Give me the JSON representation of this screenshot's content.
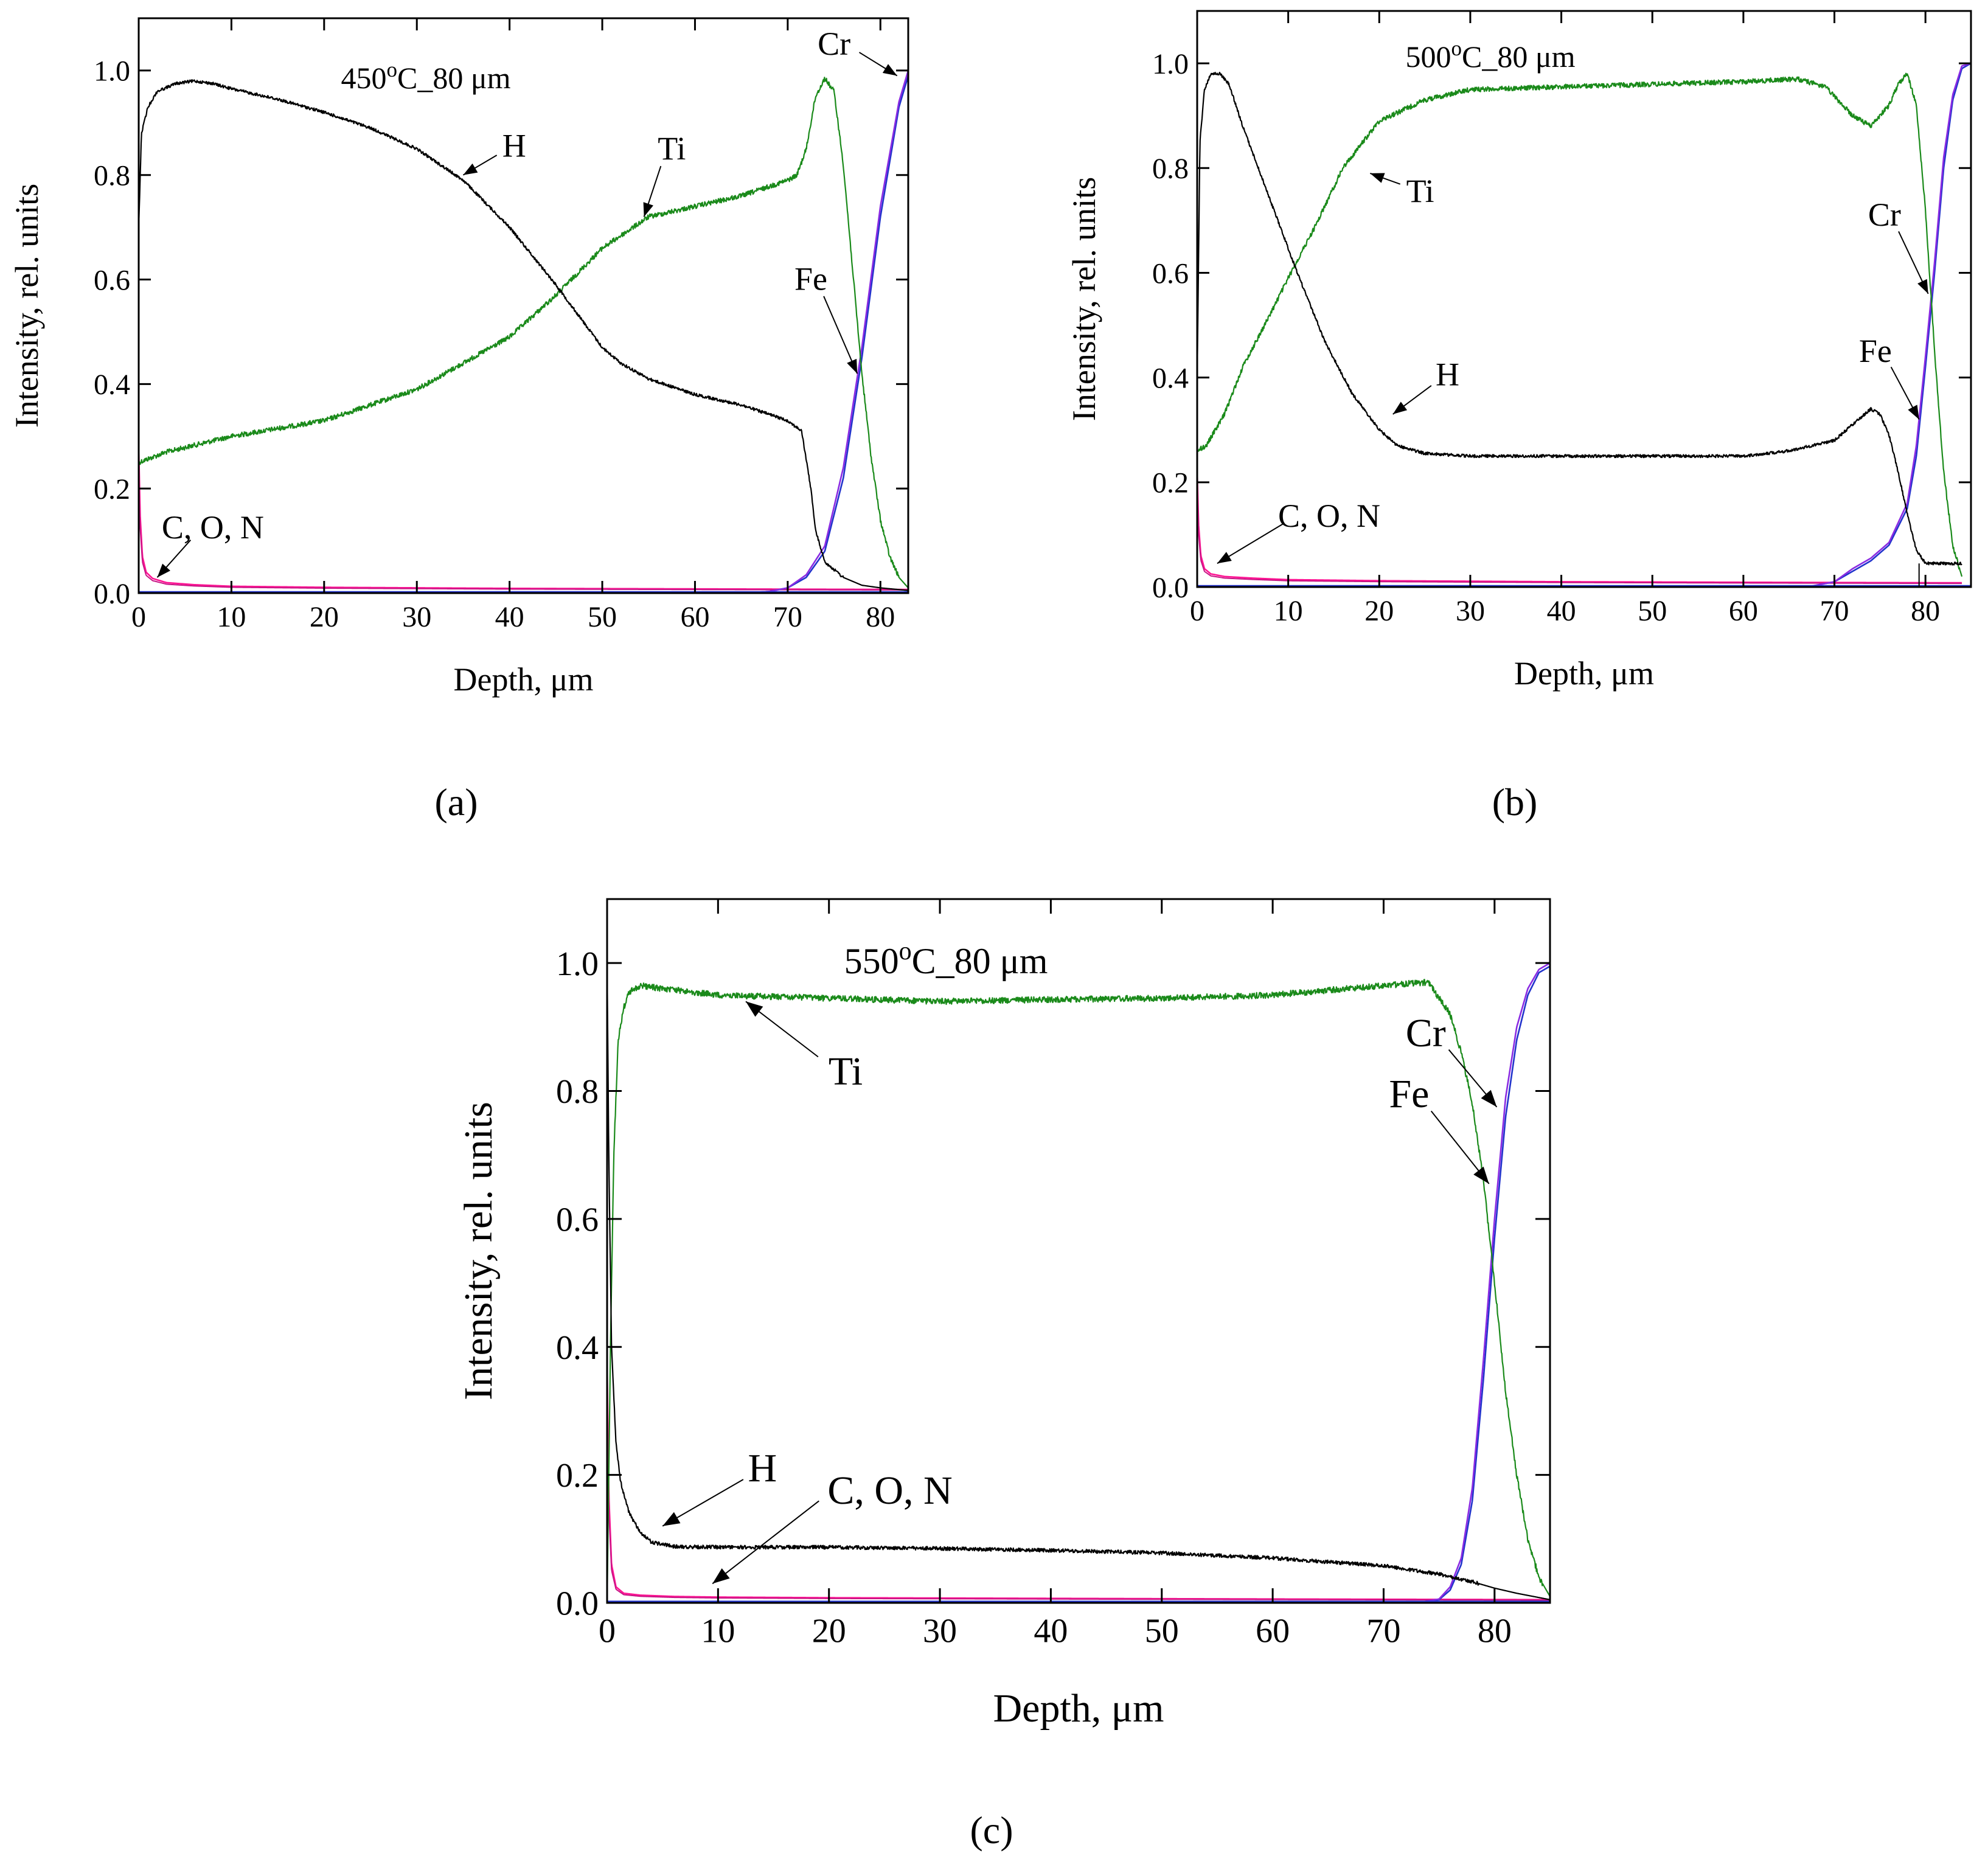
{
  "figure": {
    "panels": [
      "(a)",
      "(b)",
      "(c)"
    ]
  },
  "colors": {
    "H": "#000000",
    "Ti": "#1a8a1a",
    "Fe": "#2233cc",
    "Cr": "#8a2be2",
    "C_O_N": "#ff1493",
    "C_O_N_dark": "#c71585"
  },
  "chart_data": [
    {
      "type": "line",
      "panel": "(a)",
      "title": "450°C_80 μm",
      "title_main": "450",
      "title_sup": "o",
      "title_rest": "C_80 μm",
      "xlabel": "Depth, μm",
      "ylabel": "Intensity, rel. units",
      "xlim": [
        0,
        83
      ],
      "ylim": [
        0,
        1.1
      ],
      "xticks": [
        0,
        10,
        20,
        30,
        40,
        50,
        60,
        70,
        80
      ],
      "yticks": [
        0.0,
        0.2,
        0.4,
        0.6,
        0.8,
        1.0
      ],
      "ytick_labels": [
        "0.0",
        "0.2",
        "0.4",
        "0.6",
        "0.8",
        "1.0"
      ],
      "series": [
        {
          "name": "H",
          "x": [
            0,
            0.3,
            1,
            2,
            4,
            6,
            8,
            10,
            15,
            20,
            25,
            30,
            35,
            40,
            45,
            50,
            52,
            55,
            60,
            65,
            70,
            71.5,
            72.5,
            73,
            74,
            76,
            78,
            80,
            83
          ],
          "y": [
            0.7,
            0.88,
            0.93,
            0.96,
            0.975,
            0.98,
            0.975,
            0.965,
            0.945,
            0.92,
            0.89,
            0.85,
            0.79,
            0.7,
            0.59,
            0.47,
            0.44,
            0.41,
            0.38,
            0.36,
            0.33,
            0.31,
            0.2,
            0.12,
            0.06,
            0.03,
            0.015,
            0.01,
            0.005
          ]
        },
        {
          "name": "Ti",
          "x": [
            0,
            3,
            10,
            20,
            30,
            40,
            45,
            50,
            55,
            60,
            65,
            70,
            71,
            72,
            73,
            74,
            75,
            76,
            77,
            78,
            79,
            80,
            81,
            82,
            83
          ],
          "y": [
            0.25,
            0.27,
            0.3,
            0.33,
            0.39,
            0.49,
            0.57,
            0.66,
            0.72,
            0.74,
            0.76,
            0.79,
            0.8,
            0.85,
            0.95,
            0.985,
            0.96,
            0.82,
            0.62,
            0.42,
            0.26,
            0.14,
            0.07,
            0.03,
            0.01
          ]
        },
        {
          "name": "Fe",
          "x": [
            0,
            65,
            68,
            70,
            72,
            74,
            76,
            78,
            80,
            82,
            83
          ],
          "y": [
            0.0,
            0.0,
            0.003,
            0.01,
            0.03,
            0.08,
            0.22,
            0.45,
            0.72,
            0.93,
            0.99
          ]
        },
        {
          "name": "Cr",
          "x": [
            0,
            65,
            68,
            70,
            72,
            74,
            76,
            78,
            80,
            82,
            83
          ],
          "y": [
            0.0,
            0.0,
            0.003,
            0.01,
            0.035,
            0.09,
            0.24,
            0.47,
            0.74,
            0.94,
            1.0
          ]
        },
        {
          "name": "C, O, N",
          "x": [
            0,
            0.15,
            0.4,
            0.8,
            1.5,
            3,
            6,
            10,
            20,
            40,
            60,
            80,
            83
          ],
          "y": [
            0.28,
            0.15,
            0.07,
            0.04,
            0.028,
            0.02,
            0.016,
            0.013,
            0.011,
            0.009,
            0.008,
            0.007,
            0.007
          ]
        }
      ],
      "annotations": [
        {
          "text": "H",
          "tx": 40.5,
          "ty": 0.835,
          "ax": 35,
          "ay": 0.8
        },
        {
          "text": "Ti",
          "tx": 57.5,
          "ty": 0.83,
          "ax": 54.5,
          "ay": 0.72
        },
        {
          "text": "Cr",
          "tx": 75,
          "ty": 1.03,
          "ax": 81.8,
          "ay": 0.99
        },
        {
          "text": "Fe",
          "tx": 72.5,
          "ty": 0.58,
          "ax": 77.5,
          "ay": 0.42
        },
        {
          "text": "C, O, N",
          "tx": 8,
          "ty": 0.105,
          "ax": 2,
          "ay": 0.03
        }
      ]
    },
    {
      "type": "line",
      "panel": "(b)",
      "title": "500°C_80 μm",
      "title_main": "500",
      "title_sup": "o",
      "title_rest": "C_80 μm",
      "xlabel": "Depth, μm",
      "ylabel": "Intensity, rel. units",
      "xlim": [
        0,
        85
      ],
      "ylim": [
        0,
        1.1
      ],
      "xticks": [
        0,
        10,
        20,
        30,
        40,
        50,
        60,
        70,
        80
      ],
      "yticks": [
        0.0,
        0.2,
        0.4,
        0.6,
        0.8,
        1.0
      ],
      "ytick_labels": [
        "0.0",
        "0.2",
        "0.4",
        "0.6",
        "0.8",
        "1.0"
      ],
      "series": [
        {
          "name": "H",
          "x": [
            0,
            0.3,
            0.8,
            1.5,
            2.5,
            3.5,
            5,
            8,
            11,
            14,
            17,
            20,
            22,
            25,
            30,
            40,
            50,
            60,
            65,
            70,
            72,
            74,
            75,
            76,
            77,
            78,
            79,
            80,
            84
          ],
          "y": [
            0.4,
            0.85,
            0.95,
            0.98,
            0.98,
            0.96,
            0.88,
            0.74,
            0.6,
            0.47,
            0.37,
            0.3,
            0.27,
            0.255,
            0.25,
            0.25,
            0.25,
            0.25,
            0.26,
            0.28,
            0.31,
            0.34,
            0.33,
            0.29,
            0.22,
            0.14,
            0.07,
            0.045,
            0.045
          ]
        },
        {
          "name": "Ti",
          "x": [
            0,
            1,
            3,
            5,
            8,
            10,
            13,
            16,
            20,
            25,
            30,
            40,
            50,
            60,
            66,
            69,
            72,
            74,
            76,
            77,
            78,
            79,
            80,
            81,
            82,
            83,
            84
          ],
          "y": [
            0.26,
            0.27,
            0.33,
            0.42,
            0.52,
            0.59,
            0.69,
            0.8,
            0.89,
            0.93,
            0.95,
            0.955,
            0.96,
            0.965,
            0.97,
            0.955,
            0.9,
            0.88,
            0.92,
            0.96,
            0.98,
            0.92,
            0.72,
            0.45,
            0.22,
            0.08,
            0.02
          ]
        },
        {
          "name": "Fe",
          "x": [
            0,
            67,
            70,
            72,
            74,
            76,
            78,
            79,
            80,
            81,
            82,
            83,
            84,
            85
          ],
          "y": [
            0.0,
            0.0,
            0.01,
            0.03,
            0.05,
            0.08,
            0.15,
            0.25,
            0.42,
            0.6,
            0.8,
            0.93,
            0.99,
            1.0
          ]
        },
        {
          "name": "Cr",
          "x": [
            0,
            67,
            70,
            72,
            74,
            76,
            78,
            79,
            80,
            81,
            82,
            83,
            84,
            85
          ],
          "y": [
            0.0,
            0.0,
            0.01,
            0.035,
            0.055,
            0.085,
            0.16,
            0.27,
            0.44,
            0.62,
            0.82,
            0.94,
            0.995,
            1.0
          ]
        },
        {
          "name": "C, O, N",
          "x": [
            0,
            0.15,
            0.4,
            0.8,
            1.5,
            3,
            6,
            10,
            20,
            40,
            60,
            84
          ],
          "y": [
            0.22,
            0.12,
            0.06,
            0.035,
            0.025,
            0.02,
            0.017,
            0.014,
            0.012,
            0.01,
            0.009,
            0.008
          ]
        }
      ],
      "annotations": [
        {
          "text": "Ti",
          "tx": 24.5,
          "ty": 0.735,
          "ax": 19,
          "ay": 0.79
        },
        {
          "text": "H",
          "tx": 27.5,
          "ty": 0.385,
          "ax": 21.5,
          "ay": 0.33
        },
        {
          "text": "Cr",
          "tx": 75.5,
          "ty": 0.69,
          "ax": 80.3,
          "ay": 0.56
        },
        {
          "text": "Fe",
          "tx": 74.5,
          "ty": 0.43,
          "ax": 79.3,
          "ay": 0.32
        },
        {
          "text": "C, O, N",
          "tx": 14.5,
          "ty": 0.115,
          "ax": 2.2,
          "ay": 0.045
        }
      ],
      "vertical_marker_x": 79.3
    },
    {
      "type": "line",
      "panel": "(c)",
      "title": "550°C_80 μm",
      "title_main": "550",
      "title_sup": "o",
      "title_rest": "C_80 μm",
      "xlabel": "Depth, μm",
      "ylabel": "Intensity, rel. units",
      "xlim": [
        0,
        85
      ],
      "ylim": [
        0,
        1.1
      ],
      "xticks": [
        0,
        10,
        20,
        30,
        40,
        50,
        60,
        70,
        80
      ],
      "yticks": [
        0.0,
        0.2,
        0.4,
        0.6,
        0.8,
        1.0
      ],
      "ytick_labels": [
        "0.0",
        "0.2",
        "0.4",
        "0.6",
        "0.8",
        "1.0"
      ],
      "series": [
        {
          "name": "H",
          "x": [
            0,
            0.15,
            0.4,
            0.8,
            1.2,
            2,
            3,
            4,
            6,
            10,
            20,
            30,
            40,
            50,
            60,
            70,
            75,
            78,
            80,
            82,
            85
          ],
          "y": [
            1.0,
            0.7,
            0.4,
            0.25,
            0.19,
            0.14,
            0.11,
            0.095,
            0.088,
            0.087,
            0.087,
            0.085,
            0.082,
            0.078,
            0.07,
            0.058,
            0.045,
            0.033,
            0.023,
            0.015,
            0.005
          ]
        },
        {
          "name": "Ti",
          "x": [
            0,
            0.3,
            0.6,
            1,
            1.5,
            2,
            3,
            5,
            10,
            20,
            30,
            40,
            50,
            60,
            70,
            74,
            76,
            77,
            78,
            79,
            80,
            81,
            82,
            83,
            84,
            85
          ],
          "y": [
            0.0,
            0.4,
            0.7,
            0.88,
            0.93,
            0.955,
            0.965,
            0.96,
            0.95,
            0.945,
            0.94,
            0.943,
            0.945,
            0.95,
            0.965,
            0.97,
            0.92,
            0.86,
            0.78,
            0.66,
            0.5,
            0.33,
            0.2,
            0.1,
            0.04,
            0.01
          ]
        },
        {
          "name": "Fe",
          "x": [
            0,
            73,
            75,
            76,
            77,
            78,
            79,
            80,
            81,
            82,
            83,
            84,
            85
          ],
          "y": [
            0.0,
            0.0,
            0.005,
            0.02,
            0.06,
            0.16,
            0.35,
            0.57,
            0.76,
            0.88,
            0.95,
            0.985,
            0.995
          ]
        },
        {
          "name": "Cr",
          "x": [
            0,
            73,
            75,
            76,
            77,
            78,
            79,
            80,
            81,
            82,
            83,
            84,
            85
          ],
          "y": [
            0.0,
            0.0,
            0.006,
            0.025,
            0.07,
            0.18,
            0.38,
            0.6,
            0.79,
            0.9,
            0.96,
            0.99,
            1.0
          ]
        },
        {
          "name": "C, O, N",
          "x": [
            0,
            0.15,
            0.4,
            0.8,
            1.5,
            3,
            6,
            10,
            20,
            40,
            60,
            85
          ],
          "y": [
            0.37,
            0.17,
            0.06,
            0.025,
            0.015,
            0.012,
            0.01,
            0.009,
            0.008,
            0.007,
            0.006,
            0.005
          ]
        }
      ],
      "annotations": [
        {
          "text": "Ti",
          "tx": 21.5,
          "ty": 0.81,
          "ax": 12.5,
          "ay": 0.94
        },
        {
          "text": "Cr",
          "tx": 73.8,
          "ty": 0.87,
          "ax": 80.2,
          "ay": 0.775
        },
        {
          "text": "Fe",
          "tx": 72.3,
          "ty": 0.775,
          "ax": 79.5,
          "ay": 0.655
        },
        {
          "text": "H",
          "tx": 14,
          "ty": 0.19,
          "ax": 5,
          "ay": 0.12
        },
        {
          "text": "C, O, N",
          "tx": 25.5,
          "ty": 0.155,
          "ax": 9.5,
          "ay": 0.03
        }
      ]
    }
  ]
}
